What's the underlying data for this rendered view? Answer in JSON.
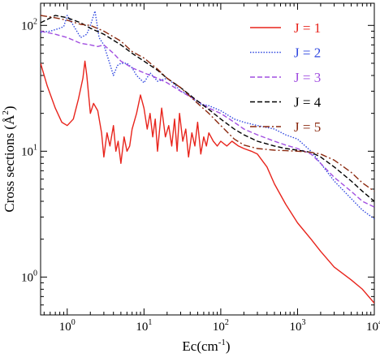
{
  "chart_data": {
    "type": "line",
    "xlabel": "Ec(cm",
    "xlabel_sup": "-1",
    "xlabel_close": ")",
    "ylabel": "Cross sections (Å",
    "ylabel_sup": "2",
    "ylabel_close": ")",
    "x_scale": "log",
    "y_scale": "log",
    "xlim": [
      0.45,
      10000
    ],
    "ylim": [
      0.5,
      150
    ],
    "x_ticks": [
      {
        "value": 1,
        "base": "10",
        "exp": "0"
      },
      {
        "value": 10,
        "base": "10",
        "exp": "1"
      },
      {
        "value": 100,
        "base": "10",
        "exp": "2"
      },
      {
        "value": 1000,
        "base": "10",
        "exp": "3"
      },
      {
        "value": 10000,
        "base": "10",
        "exp": "4"
      }
    ],
    "y_ticks": [
      {
        "value": 1,
        "base": "10",
        "exp": "0"
      },
      {
        "value": 10,
        "base": "10",
        "exp": "1"
      },
      {
        "value": 100,
        "base": "10",
        "exp": "2"
      }
    ],
    "grid": false,
    "legend_position": "top-right",
    "series": [
      {
        "name": "J = 1",
        "color": "#e8241c",
        "dash": "solid",
        "x": [
          0.45,
          0.55,
          0.7,
          0.85,
          1.0,
          1.2,
          1.4,
          1.6,
          1.7,
          1.8,
          2.0,
          2.2,
          2.5,
          2.8,
          3.0,
          3.3,
          3.6,
          4.0,
          4.3,
          4.6,
          5.0,
          5.5,
          6.0,
          6.5,
          7.0,
          8.0,
          9.0,
          10,
          11,
          12,
          13,
          14,
          15,
          17,
          19,
          21,
          23,
          25,
          27,
          29,
          32,
          35,
          38,
          42,
          46,
          50,
          55,
          60,
          65,
          70,
          80,
          90,
          100,
          120,
          140,
          170,
          200,
          250,
          300,
          400,
          500,
          700,
          1000,
          1500,
          2000,
          3000,
          5000,
          7000,
          10000
        ],
        "y": [
          50,
          33,
          22,
          17,
          16,
          18,
          26,
          38,
          52,
          40,
          20,
          24,
          21,
          14,
          9,
          14,
          11,
          16,
          10,
          12,
          8,
          13,
          10,
          11,
          15,
          20,
          28,
          22,
          15,
          20,
          13,
          18,
          10,
          22,
          13,
          16,
          11,
          18,
          10,
          20,
          12,
          15,
          9,
          14,
          11,
          17,
          9.5,
          13,
          11,
          14,
          12,
          11,
          12,
          11,
          12,
          11,
          10.5,
          10,
          9.5,
          7.5,
          5.5,
          3.8,
          2.7,
          2.0,
          1.6,
          1.2,
          0.95,
          0.8,
          0.62
        ]
      },
      {
        "name": "J = 2",
        "color": "#3048e0",
        "dash": "dotted",
        "x": [
          0.45,
          0.6,
          0.8,
          0.9,
          1.0,
          1.2,
          1.5,
          1.8,
          2.0,
          2.3,
          2.6,
          3.0,
          3.5,
          4.0,
          4.5,
          5.0,
          6.0,
          7.0,
          8.0,
          10,
          12,
          15,
          20,
          25,
          30,
          40,
          50,
          70,
          100,
          150,
          200,
          300,
          500,
          700,
          1000,
          1500,
          2000,
          3000,
          5000,
          7000,
          10000
        ],
        "y": [
          88,
          90,
          95,
          98,
          120,
          100,
          80,
          85,
          100,
          130,
          80,
          70,
          52,
          40,
          48,
          50,
          50,
          46,
          40,
          35,
          42,
          36,
          38,
          34,
          30,
          28,
          24,
          23,
          21,
          18,
          17,
          16,
          15,
          13.5,
          12.5,
          10,
          8,
          5.8,
          4.2,
          3.4,
          2.9
        ]
      },
      {
        "name": "J = 3",
        "color": "#a14ee0",
        "dash": "dashed",
        "x": [
          0.45,
          0.7,
          1.0,
          1.5,
          2.0,
          2.5,
          3.0,
          4.0,
          5.0,
          7.0,
          10,
          15,
          20,
          30,
          50,
          70,
          100,
          150,
          200,
          300,
          500,
          700,
          1000,
          1500,
          2000,
          3000,
          5000,
          7000,
          10000
        ],
        "y": [
          90,
          85,
          80,
          72,
          70,
          68,
          70,
          60,
          52,
          46,
          42,
          38,
          35,
          30,
          25,
          22,
          20,
          17,
          15,
          13.5,
          12,
          11.2,
          10.5,
          9.5,
          8.0,
          6.2,
          4.8,
          4.0,
          3.6
        ]
      },
      {
        "name": "J = 4",
        "color": "#000000",
        "dash": "dashed",
        "x": [
          0.45,
          0.7,
          1.0,
          1.5,
          2.0,
          3.0,
          5.0,
          7.0,
          10,
          15,
          20,
          30,
          50,
          70,
          100,
          150,
          200,
          300,
          500,
          700,
          1000,
          1500,
          2000,
          3000,
          5000,
          7000,
          10000
        ],
        "y": [
          105,
          120,
          115,
          105,
          95,
          85,
          70,
          60,
          52,
          44,
          38,
          32,
          25,
          21.5,
          18,
          15,
          13.5,
          12,
          11,
          10.5,
          10.2,
          9.8,
          9.0,
          7.5,
          5.8,
          4.8,
          4.0
        ]
      },
      {
        "name": "J = 5",
        "color": "#8b2a10",
        "dash": "dashdot",
        "x": [
          0.45,
          0.7,
          1.0,
          1.5,
          2.0,
          3.0,
          5.0,
          7.0,
          10,
          15,
          20,
          30,
          50,
          70,
          100,
          150,
          200,
          300,
          500,
          700,
          1000,
          1500,
          2000,
          3000,
          5000,
          7000,
          10000
        ],
        "y": [
          120,
          115,
          110,
          102,
          100,
          90,
          75,
          62,
          55,
          45,
          38,
          32,
          24,
          20,
          16,
          12.5,
          11.2,
          10.5,
          10.2,
          10.1,
          10.0,
          9.8,
          9.5,
          8.5,
          6.8,
          5.6,
          4.8
        ]
      }
    ]
  }
}
